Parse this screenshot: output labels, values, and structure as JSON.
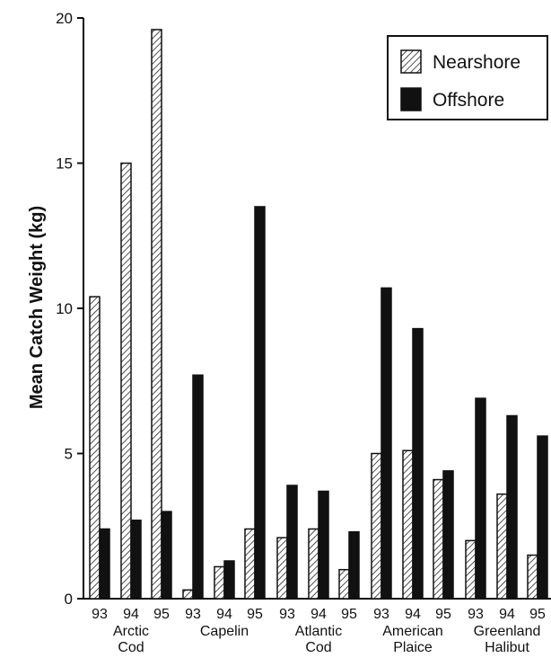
{
  "chart_data": {
    "type": "bar",
    "title": "",
    "xlabel": "",
    "ylabel": "Mean Catch Weight (kg)",
    "ylim": [
      0,
      20
    ],
    "yticks": [
      0,
      5,
      10,
      15,
      20
    ],
    "grid": false,
    "legend_position": "top-right",
    "groups": [
      {
        "name": [
          "Arctic",
          "Cod"
        ],
        "years": [
          "93",
          "94",
          "95"
        ],
        "nearshore": [
          10.4,
          15.0,
          19.6
        ],
        "offshore": [
          2.4,
          2.7,
          3.0
        ]
      },
      {
        "name": [
          "Capelin"
        ],
        "years": [
          "93",
          "94",
          "95"
        ],
        "nearshore": [
          0.3,
          1.1,
          2.4
        ],
        "offshore": [
          7.7,
          1.3,
          13.5
        ]
      },
      {
        "name": [
          "Atlantic",
          "Cod"
        ],
        "years": [
          "93",
          "94",
          "95"
        ],
        "nearshore": [
          2.1,
          2.4,
          1.0
        ],
        "offshore": [
          3.9,
          3.7,
          2.3
        ]
      },
      {
        "name": [
          "American",
          "Plaice"
        ],
        "years": [
          "93",
          "94",
          "95"
        ],
        "nearshore": [
          5.0,
          5.1,
          4.1
        ],
        "offshore": [
          10.7,
          9.3,
          4.4
        ]
      },
      {
        "name": [
          "Greenland",
          "Halibut"
        ],
        "years": [
          "93",
          "94",
          "95"
        ],
        "nearshore": [
          2.0,
          3.6,
          1.5
        ],
        "offshore": [
          6.9,
          6.3,
          5.6
        ]
      }
    ],
    "series": [
      {
        "name": "Nearshore",
        "pattern": "diagonal-hatch",
        "color": "#111111"
      },
      {
        "name": "Offshore",
        "pattern": "solid",
        "color": "#111111"
      }
    ]
  }
}
